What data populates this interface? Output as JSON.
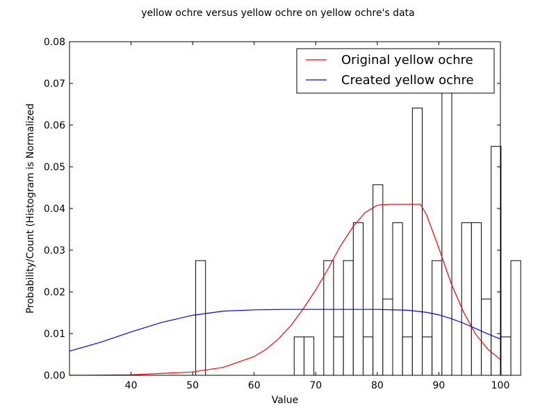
{
  "chart_data": {
    "type": "bar",
    "title": "yellow ochre versus yellow ochre on yellow ochre's data",
    "xlabel": "Value",
    "ylabel": "Probability/Count (Histogram is Normalized",
    "xlim": [
      30,
      100
    ],
    "ylim": [
      0,
      0.08
    ],
    "xticks": [
      40,
      50,
      60,
      70,
      80,
      90,
      100
    ],
    "yticks": [
      0.0,
      0.01,
      0.02,
      0.03,
      0.04,
      0.05,
      0.06,
      0.07,
      0.08
    ],
    "ytick_labels": [
      "0.00",
      "0.01",
      "0.02",
      "0.03",
      "0.04",
      "0.05",
      "0.06",
      "0.07",
      "0.08"
    ],
    "grid": false,
    "legend_position": "top-right",
    "histogram": {
      "bin_start": 50.5,
      "bin_width": 1.6,
      "values": [
        0.0275,
        0,
        0,
        0,
        0,
        0,
        0,
        0,
        0,
        0,
        0.0092,
        0.0092,
        0,
        0.0275,
        0.0092,
        0.0275,
        0.0366,
        0.0092,
        0.0457,
        0.0183,
        0.0366,
        0.0092,
        0.0641,
        0.0092,
        0.0275,
        0.0732,
        0,
        0.0366,
        0.0366,
        0.0183,
        0.0549,
        0.0092,
        0.0275
      ]
    },
    "series": [
      {
        "name": "Original yellow ochre",
        "color": "#ff0000",
        "x": [
          30,
          40,
          50,
          55,
          60,
          62,
          64,
          66,
          68,
          70,
          72,
          74,
          76,
          78,
          80,
          82,
          84,
          86,
          87,
          88,
          90,
          92,
          94,
          96,
          98,
          100
        ],
        "y": [
          0.0,
          0.0001,
          0.0008,
          0.0019,
          0.0045,
          0.0063,
          0.0088,
          0.012,
          0.016,
          0.0205,
          0.0255,
          0.031,
          0.0355,
          0.039,
          0.0408,
          0.041,
          0.041,
          0.041,
          0.041,
          0.0385,
          0.0305,
          0.022,
          0.0152,
          0.0098,
          0.0062,
          0.0038
        ]
      },
      {
        "name": "Created yellow ochre",
        "color": "#0000ff",
        "x": [
          30,
          35,
          40,
          45,
          50,
          55,
          60,
          65,
          70,
          75,
          80,
          85,
          88,
          90,
          92,
          94,
          96,
          98,
          100
        ],
        "y": [
          0.0058,
          0.0079,
          0.0104,
          0.0127,
          0.0144,
          0.0154,
          0.0157,
          0.0158,
          0.0158,
          0.0158,
          0.0158,
          0.0156,
          0.0151,
          0.0145,
          0.0136,
          0.0125,
          0.0112,
          0.0099,
          0.0087
        ]
      }
    ]
  }
}
